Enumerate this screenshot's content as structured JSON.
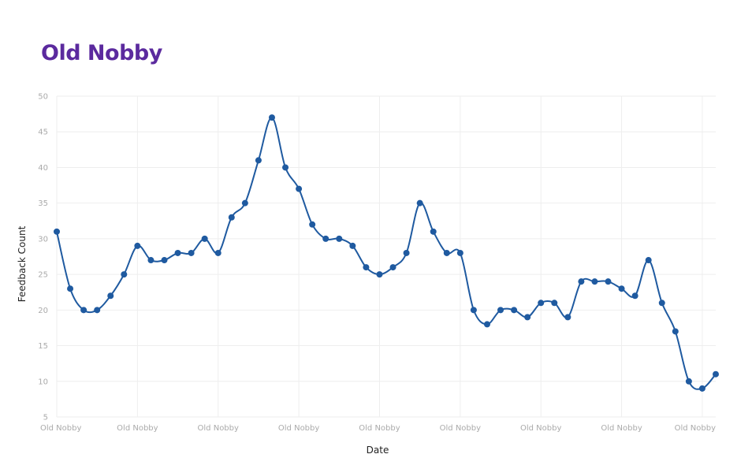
{
  "chart_data": {
    "type": "line",
    "title": "Old Nobby",
    "xlabel": "Date",
    "ylabel": "Feedback Count",
    "ylim": [
      5,
      50
    ],
    "yticks": [
      5,
      10,
      15,
      20,
      25,
      30,
      35,
      40,
      45,
      50
    ],
    "xtick_labels": [
      "Old Nobby",
      "Old Nobby",
      "Old Nobby",
      "Old Nobby",
      "Old Nobby",
      "Old Nobby",
      "Old Nobby",
      "Old Nobby",
      "Old Nobby"
    ],
    "grid": true,
    "colors": {
      "line": "#1f5aa0",
      "title": "#5b2a9e",
      "grid": "#eeeeee"
    },
    "series": [
      {
        "values": [
          31,
          23,
          20,
          20,
          22,
          25,
          29,
          27,
          27,
          28,
          28,
          30,
          28,
          33,
          35,
          41,
          47,
          40,
          37,
          32,
          30,
          30,
          29,
          26,
          25,
          26,
          28,
          35,
          31,
          28,
          28,
          20,
          18,
          20,
          20,
          19,
          21,
          21,
          19,
          24,
          24,
          24,
          23,
          22,
          27,
          21,
          17,
          10,
          9,
          11
        ]
      }
    ]
  }
}
